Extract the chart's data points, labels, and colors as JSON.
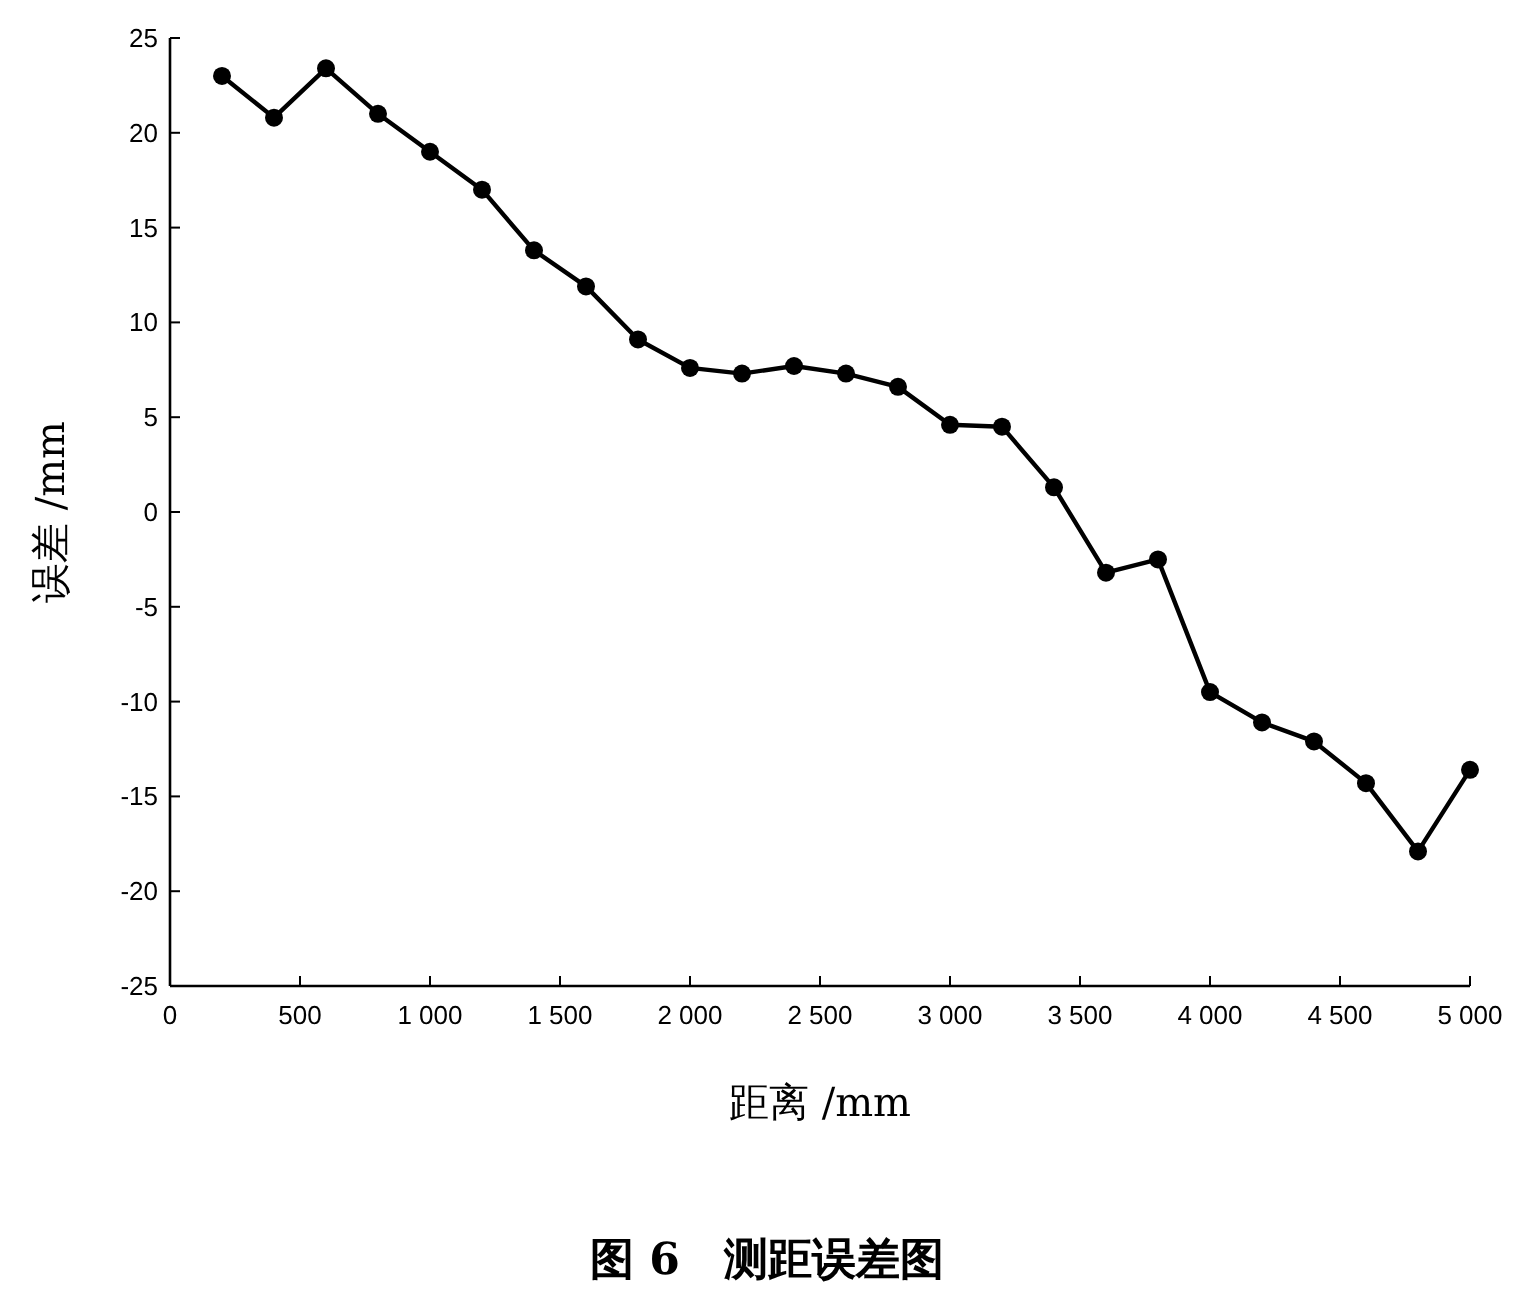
{
  "chart_data": {
    "type": "line",
    "title": "图 6　测距误差图",
    "xlabel": "距离 /mm",
    "ylabel": "误差 /mm",
    "x": [
      200,
      400,
      600,
      800,
      1000,
      1200,
      1400,
      1600,
      1800,
      2000,
      2200,
      2400,
      2600,
      2800,
      3000,
      3200,
      3400,
      3600,
      3800,
      4000,
      4200,
      4400,
      4600,
      4800,
      5000
    ],
    "series": [
      {
        "color": "#000000",
        "values": [
          23,
          20.8,
          23.4,
          21,
          19,
          17,
          13.8,
          11.9,
          9.1,
          7.6,
          7.3,
          7.7,
          7.3,
          6.6,
          4.6,
          4.5,
          1.3,
          -3.2,
          -2.5,
          -9.5,
          -11.1,
          -12.1,
          -14.3,
          -17.9,
          -13.6
        ]
      }
    ],
    "xlim": [
      0,
      5000
    ],
    "ylim": [
      -25,
      25
    ],
    "xticks": [
      0,
      500,
      {
        "value": 1000,
        "label": "1 000"
      },
      {
        "value": 1500,
        "label": "1 500"
      },
      {
        "value": 2000,
        "label": "2 000"
      },
      {
        "value": 2500,
        "label": "2 500"
      },
      {
        "value": 3000,
        "label": "3 000"
      },
      {
        "value": 3500,
        "label": "3 500"
      },
      {
        "value": 4000,
        "label": "4 000"
      },
      {
        "value": 4500,
        "label": "4 500"
      },
      {
        "value": 5000,
        "label": "5 000"
      }
    ],
    "yticks": [
      -25,
      -20,
      -15,
      -10,
      -5,
      0,
      5,
      10,
      15,
      20,
      25
    ],
    "marker": "circle",
    "line_style": "solid",
    "grid": false
  }
}
